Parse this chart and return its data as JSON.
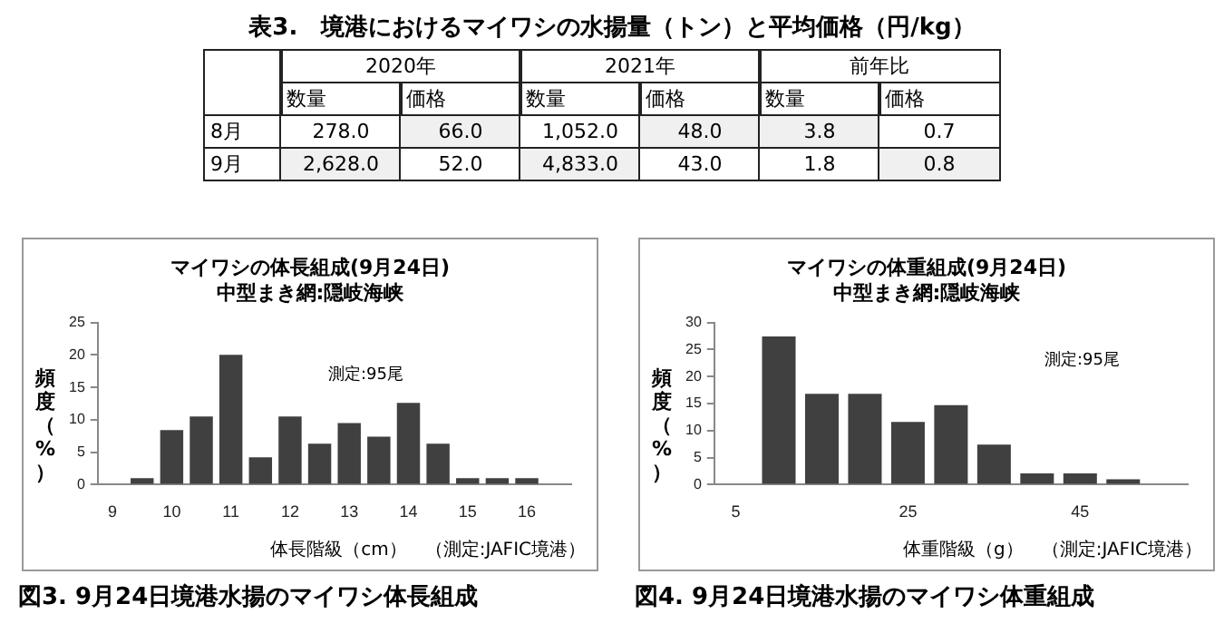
{
  "chart_data": [
    {
      "type": "heatmap",
      "title": "表3.　境港におけるマイワシの水揚量（トン）と平均価格（円/kg）",
      "annotations": [
        "2020年",
        "2021年",
        "前年比"
      ],
      "categories": [
        "数量",
        "価格",
        "数量",
        "価格",
        "数量",
        "価格"
      ],
      "y_categories": [
        "8月",
        "9月"
      ],
      "cells": [
        [
          278.0,
          66.0,
          1052.0,
          48.0,
          3.8,
          0.7
        ],
        [
          2628.0,
          52.0,
          4833.0,
          43.0,
          1.8,
          0.8
        ]
      ],
      "cell_labels": [
        [
          "278.0",
          "66.0",
          "1,052.0",
          "48.0",
          "3.8",
          "0.7"
        ],
        [
          "2,628.0",
          "52.0",
          "4,833.0",
          "43.0",
          "1.8",
          "0.8"
        ]
      ]
    },
    {
      "type": "bar",
      "title": "マイワシの体長組成(9月24日)",
      "subtitle": "中型まき網:隠岐海峡",
      "xlabel": "体長階級（cm）",
      "ylabel": "頻度（%）",
      "annotations": [
        "測定:95尾",
        "（測定:JAFIC境港）",
        "図3.  9月24日境港水揚のマイワシ体長組成"
      ],
      "categories": [
        "9",
        null,
        "10",
        null,
        "11",
        null,
        "12",
        null,
        "13",
        null,
        "14",
        null,
        "15",
        null,
        "16",
        null
      ],
      "values": [
        0,
        1,
        8.4,
        10.5,
        20,
        4.2,
        10.5,
        6.3,
        9.5,
        7.4,
        12.6,
        6.3,
        1,
        1,
        1,
        0
      ],
      "color": "#404040",
      "ylim": [
        0,
        25
      ],
      "yticks": [
        0,
        5,
        10,
        15,
        20,
        25
      ],
      "grid": false
    },
    {
      "type": "bar",
      "title": "マイワシの体重組成(9月24日)",
      "subtitle": "中型まき網:隠岐海峡",
      "xlabel": "体重階級（g）",
      "ylabel": "頻度（%）",
      "annotations": [
        "測定:95尾",
        "（測定:JAFIC境港）",
        "図4.  9月24日境港水揚のマイワシ体重組成"
      ],
      "categories": [
        "5",
        null,
        null,
        null,
        "25",
        null,
        null,
        null,
        "45",
        null,
        null
      ],
      "values": [
        0,
        27.4,
        16.8,
        16.8,
        11.6,
        14.7,
        7.4,
        2.1,
        2.1,
        1,
        0
      ],
      "color": "#404040",
      "ylim": [
        0,
        30
      ],
      "yticks": [
        0,
        5,
        10,
        15,
        20,
        25,
        30
      ],
      "grid": false
    }
  ]
}
